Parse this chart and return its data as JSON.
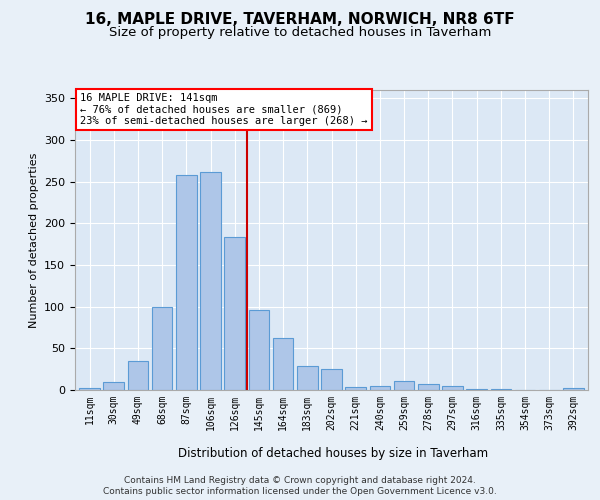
{
  "title1": "16, MAPLE DRIVE, TAVERHAM, NORWICH, NR8 6TF",
  "title2": "Size of property relative to detached houses in Taverham",
  "xlabel": "Distribution of detached houses by size in Taverham",
  "ylabel": "Number of detached properties",
  "categories": [
    "11sqm",
    "30sqm",
    "49sqm",
    "68sqm",
    "87sqm",
    "106sqm",
    "126sqm",
    "145sqm",
    "164sqm",
    "183sqm",
    "202sqm",
    "221sqm",
    "240sqm",
    "259sqm",
    "278sqm",
    "297sqm",
    "316sqm",
    "335sqm",
    "354sqm",
    "373sqm",
    "392sqm"
  ],
  "values": [
    2,
    10,
    35,
    100,
    258,
    262,
    184,
    96,
    62,
    29,
    25,
    4,
    5,
    11,
    7,
    5,
    1,
    1,
    0,
    0,
    3
  ],
  "bar_color": "#aec6e8",
  "bar_edge_color": "#5b9bd5",
  "property_label": "16 MAPLE DRIVE: 141sqm",
  "annotation_line1": "← 76% of detached houses are smaller (869)",
  "annotation_line2": "23% of semi-detached houses are larger (268) →",
  "vline_color": "#cc0000",
  "vline_position": 6.5,
  "bg_color": "#e8f0f8",
  "axes_bg_color": "#dce8f5",
  "footer1": "Contains HM Land Registry data © Crown copyright and database right 2024.",
  "footer2": "Contains public sector information licensed under the Open Government Licence v3.0.",
  "ylim": [
    0,
    360
  ],
  "title1_fontsize": 11,
  "title2_fontsize": 9.5
}
